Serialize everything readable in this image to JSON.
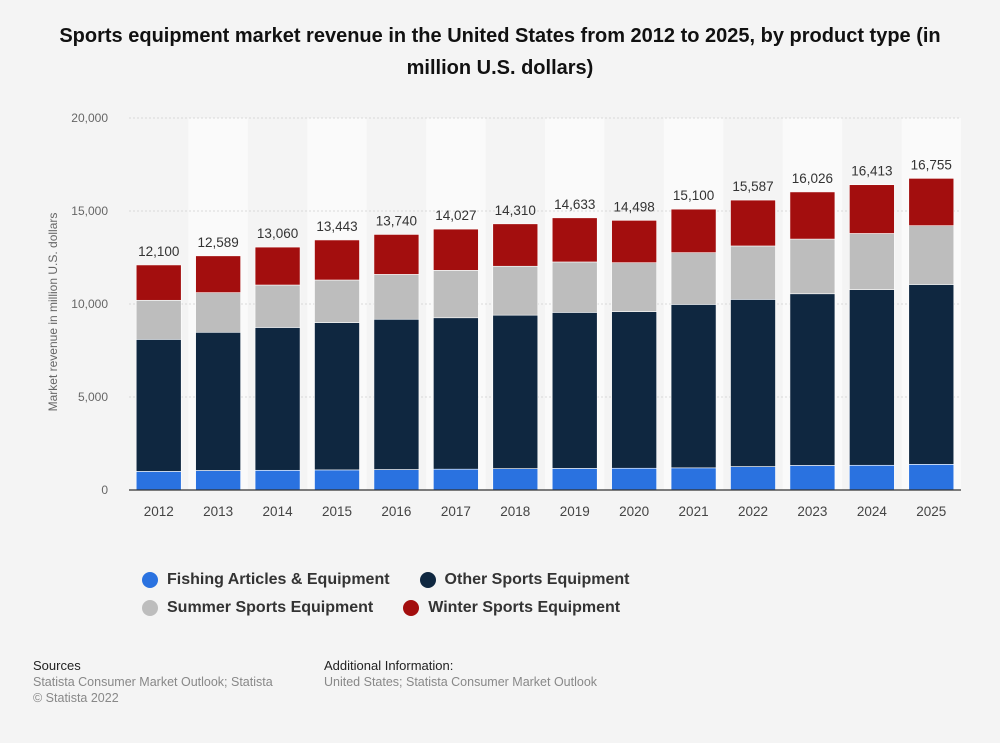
{
  "chart_data": {
    "type": "bar",
    "stacked": true,
    "title": "Sports equipment market revenue in the United States from 2012 to 2025, by product type (in million U.S. dollars)",
    "xlabel": "",
    "ylabel": "Market revenue in million U.S. dollars",
    "ylim": [
      0,
      20000
    ],
    "yticks": [
      0,
      5000,
      10000,
      15000,
      20000
    ],
    "ytick_labels": [
      "0",
      "5,000",
      "10,000",
      "15,000",
      "20,000"
    ],
    "categories": [
      "2012",
      "2013",
      "2014",
      "2015",
      "2016",
      "2017",
      "2018",
      "2019",
      "2020",
      "2021",
      "2022",
      "2023",
      "2024",
      "2025"
    ],
    "series": [
      {
        "name": "Fishing Articles & Equipment",
        "color": "#2a72e0",
        "values": [
          1000,
          1050,
          1060,
          1080,
          1100,
          1120,
          1150,
          1160,
          1170,
          1190,
          1260,
          1320,
          1330,
          1380
        ]
      },
      {
        "name": "Other Sports Equipment",
        "color": "#0f2740",
        "values": [
          7100,
          7430,
          7680,
          7920,
          8080,
          8140,
          8250,
          8390,
          8420,
          8790,
          8990,
          9230,
          9440,
          9670
        ]
      },
      {
        "name": "Summer Sports Equipment",
        "color": "#bdbdbd",
        "values": [
          2100,
          2130,
          2280,
          2290,
          2410,
          2550,
          2630,
          2710,
          2630,
          2780,
          2870,
          2940,
          3020,
          3160
        ]
      },
      {
        "name": "Winter Sports Equipment",
        "color": "#a30e0e",
        "values": [
          1900,
          1979,
          2040,
          2153,
          2150,
          2217,
          2280,
          2373,
          2278,
          2340,
          2467,
          2536,
          2623,
          2545
        ]
      }
    ],
    "totals": [
      12100,
      12589,
      13060,
      13443,
      13740,
      14027,
      14310,
      14633,
      14498,
      15100,
      15587,
      16026,
      16413,
      16755
    ],
    "total_labels": [
      "12,100",
      "12,589",
      "13,060",
      "13,443",
      "13,740",
      "14,027",
      "14,310",
      "14,633",
      "14,498",
      "15,100",
      "15,587",
      "16,026",
      "16,413",
      "16,755"
    ],
    "legend_position": "bottom",
    "grid": true
  },
  "footer": {
    "sources_heading": "Sources",
    "sources_line1": "Statista Consumer Market Outlook; Statista",
    "sources_line2": "© Statista 2022",
    "additional_heading": "Additional Information:",
    "additional_line1": "United States; Statista Consumer Market Outlook"
  }
}
